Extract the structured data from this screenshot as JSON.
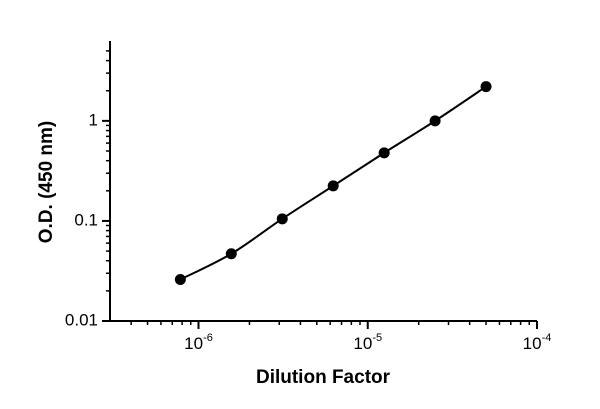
{
  "chart_data": {
    "type": "scatter",
    "log_x": true,
    "log_y": true,
    "x_label": "Dilution Factor",
    "y_label": "O.D. (450 nm)",
    "xlim": [
      3e-07,
      0.0001
    ],
    "ylim": [
      0.01,
      6
    ],
    "xticks": [
      {
        "value": 1e-06,
        "label": "10",
        "exponent": "-6"
      },
      {
        "value": 1e-05,
        "label": "10",
        "exponent": "-5"
      },
      {
        "value": 0.0001,
        "label": "10",
        "exponent": "-4"
      }
    ],
    "yticks": [
      0.01,
      0.1,
      1
    ],
    "color": "#000000",
    "line": true,
    "x": [
      7.8125e-07,
      1.5625e-06,
      3.125e-06,
      6.25e-06,
      1.25e-05,
      2.5e-05,
      5e-05
    ],
    "values": [
      0.026,
      0.047,
      0.105,
      0.224,
      0.479,
      1.0,
      2.2
    ]
  }
}
